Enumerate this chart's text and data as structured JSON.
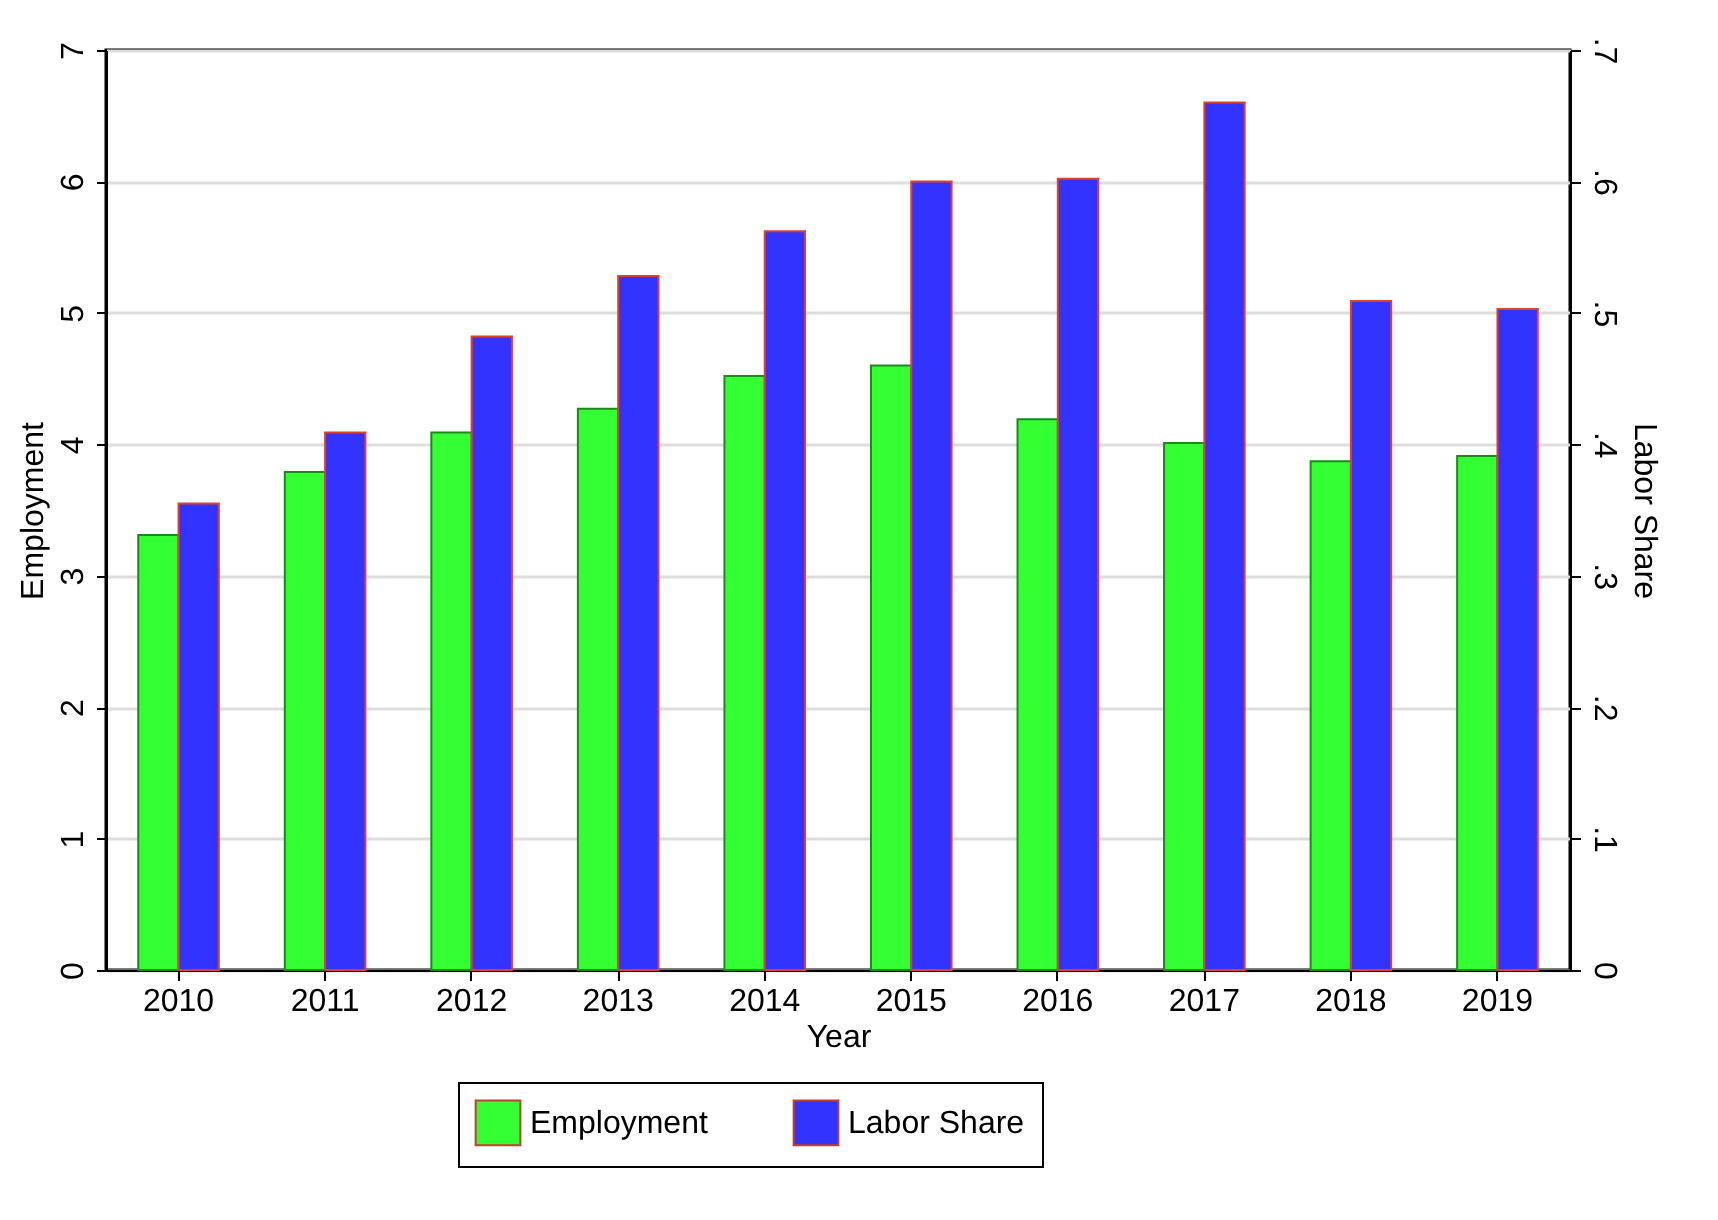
{
  "chart_data": {
    "type": "bar",
    "xlabel": "Year",
    "ylabel": "Employment",
    "y2label": "Labor Share",
    "categories": [
      "2010",
      "2011",
      "2012",
      "2013",
      "2014",
      "2015",
      "2016",
      "2017",
      "2018",
      "2019"
    ],
    "series": [
      {
        "name": "Employment",
        "color": "#33ff33",
        "values": [
          3.31,
          3.79,
          4.09,
          4.27,
          4.52,
          4.6,
          4.19,
          4.01,
          3.87,
          3.91
        ]
      },
      {
        "name": "Labor Share",
        "color": "#3333ff",
        "axis": "y2",
        "values": [
          0.355,
          0.409,
          0.482,
          0.528,
          0.562,
          0.6,
          0.602,
          0.66,
          0.509,
          0.503
        ]
      }
    ],
    "ylim": [
      0,
      7
    ],
    "yticks": [
      0,
      1,
      2,
      3,
      4,
      5,
      6,
      7
    ],
    "y2lim": [
      0,
      0.7
    ],
    "y2ticks": [
      {
        "value": 0,
        "label": "0"
      },
      {
        "value": 0.1,
        "label": ".1"
      },
      {
        "value": 0.2,
        "label": ".2"
      },
      {
        "value": 0.3,
        "label": ".3"
      },
      {
        "value": 0.4,
        "label": ".4"
      },
      {
        "value": 0.5,
        "label": ".5"
      },
      {
        "value": 0.6,
        "label": ".6"
      },
      {
        "value": 0.7,
        "label": ".7"
      }
    ],
    "grid": "y",
    "legend": "bottom"
  }
}
